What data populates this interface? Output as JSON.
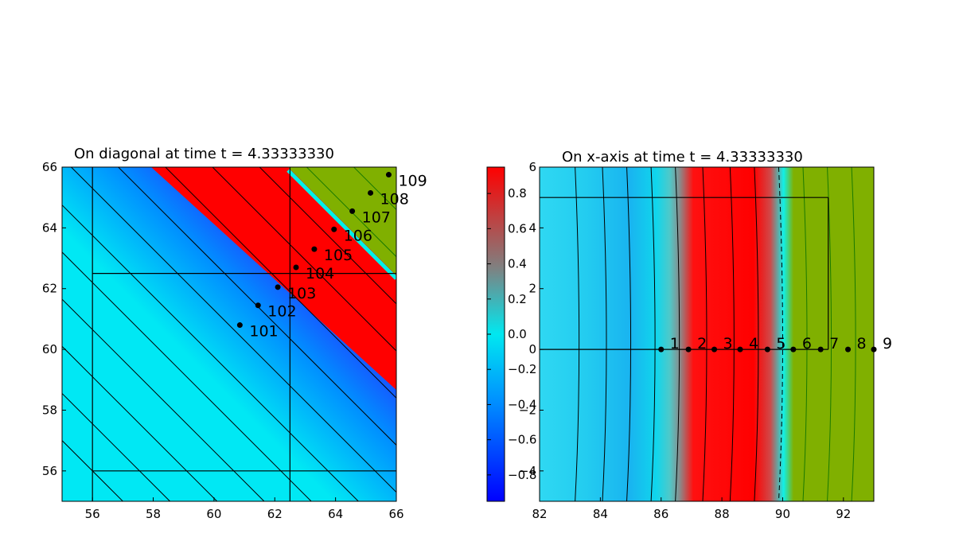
{
  "chart_data": [
    {
      "type": "heatmap",
      "title": "On diagonal at time t =      4.33333330",
      "xlabel": "",
      "ylabel": "",
      "xlim": [
        55,
        66
      ],
      "ylim": [
        55,
        66
      ],
      "x_ticks": [
        "56",
        "58",
        "60",
        "62",
        "64",
        "66"
      ],
      "y_ticks": [
        "56",
        "58",
        "60",
        "62",
        "64",
        "66"
      ],
      "grid_lines": {
        "vertical": [
          56,
          62.5
        ],
        "horizontal": [
          56,
          62.5
        ]
      },
      "points": [
        {
          "label": "101",
          "x": 60.85,
          "y": 60.8
        },
        {
          "label": "102",
          "x": 61.45,
          "y": 61.45
        },
        {
          "label": "103",
          "x": 62.1,
          "y": 62.05
        },
        {
          "label": "104",
          "x": 62.7,
          "y": 62.7
        },
        {
          "label": "105",
          "x": 63.3,
          "y": 63.3
        },
        {
          "label": "106",
          "x": 63.95,
          "y": 63.95
        },
        {
          "label": "107",
          "x": 64.55,
          "y": 64.55
        },
        {
          "label": "108",
          "x": 65.15,
          "y": 65.15
        },
        {
          "label": "109",
          "x": 65.75,
          "y": 65.75
        }
      ],
      "colors": {
        "low": "#1a5cff",
        "mid": "#00eaf0",
        "high": "#ff0000",
        "region": "#80b000"
      }
    },
    {
      "type": "heatmap",
      "title": "On x-axis at time t =      4.33333330",
      "xlabel": "",
      "ylabel": "",
      "xlim": [
        82,
        93
      ],
      "ylim": [
        -5,
        6
      ],
      "x_ticks": [
        "82",
        "84",
        "86",
        "88",
        "90",
        "92"
      ],
      "y_ticks": [
        "−4",
        "−2",
        "0",
        "2",
        "4",
        "6"
      ],
      "grid_lines": {
        "x_from": 82,
        "x_to": 91.5,
        "y": [
          0,
          5
        ]
      },
      "points": [
        {
          "label": "1",
          "x": 86.0,
          "y": 0
        },
        {
          "label": "2",
          "x": 86.9,
          "y": 0
        },
        {
          "label": "3",
          "x": 87.75,
          "y": 0
        },
        {
          "label": "4",
          "x": 88.6,
          "y": 0
        },
        {
          "label": "5",
          "x": 89.5,
          "y": 0
        },
        {
          "label": "6",
          "x": 90.35,
          "y": 0
        },
        {
          "label": "7",
          "x": 91.25,
          "y": 0
        },
        {
          "label": "8",
          "x": 92.15,
          "y": 0
        },
        {
          "label": "9",
          "x": 93.0,
          "y": 0
        }
      ],
      "colorbar": {
        "range": [
          -0.95,
          0.95
        ],
        "ticks": [
          "0.8",
          "0.6",
          "0.4",
          "0.2",
          "0.0",
          "−0.2",
          "−0.4",
          "−0.6",
          "−0.8"
        ]
      }
    }
  ]
}
